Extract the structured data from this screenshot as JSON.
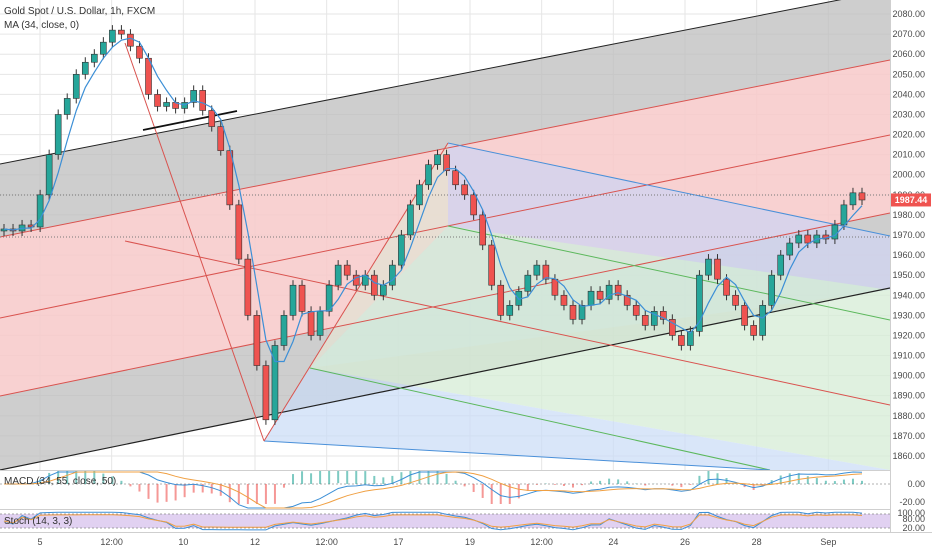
{
  "header": {
    "title": "Gold Spot / U.S. Dollar, 1h, FXCM",
    "ma_label": "MA (34, close, 0)"
  },
  "chart_data": {
    "type": "line",
    "y_ticks": [
      "2080.00",
      "2070.00",
      "2060.00",
      "2050.00",
      "2040.00",
      "2030.00",
      "2020.00",
      "2010.00",
      "2000.00",
      "1990.00",
      "1980.00",
      "1970.00",
      "1960.00",
      "1950.00",
      "1940.00",
      "1930.00",
      "1920.00",
      "1910.00",
      "1900.00",
      "1890.00",
      "1880.00",
      "1870.00",
      "1860.00"
    ],
    "x_ticks": [
      "5",
      "12:00",
      "10",
      "12",
      "12:00",
      "17",
      "19",
      "12:00",
      "24",
      "26",
      "28",
      "Sep"
    ],
    "ylim": [
      1853,
      2087
    ],
    "last_price": "1987.44",
    "price_series": [
      {
        "t": "5",
        "close": 1973
      },
      {
        "t": "5",
        "close": 1972
      },
      {
        "t": "5",
        "close": 1975
      },
      {
        "t": "5",
        "close": 1974
      },
      {
        "t": "5",
        "close": 1990
      },
      {
        "t": "5",
        "close": 2010
      },
      {
        "t": "5",
        "close": 2030
      },
      {
        "t": "5",
        "close": 2038
      },
      {
        "t": "5 12:00",
        "close": 2050
      },
      {
        "t": "5 12:00",
        "close": 2056
      },
      {
        "t": "5 12:00",
        "close": 2060
      },
      {
        "t": "5 12:00",
        "close": 2066
      },
      {
        "t": "5 12:00",
        "close": 2072
      },
      {
        "t": "5 12:00",
        "close": 2070
      },
      {
        "t": "5 12:00",
        "close": 2064
      },
      {
        "t": "5 12:00",
        "close": 2058
      },
      {
        "t": "10",
        "close": 2040
      },
      {
        "t": "10",
        "close": 2034
      },
      {
        "t": "10",
        "close": 2036
      },
      {
        "t": "10",
        "close": 2033
      },
      {
        "t": "10",
        "close": 2036
      },
      {
        "t": "10",
        "close": 2042
      },
      {
        "t": "10",
        "close": 2032
      },
      {
        "t": "10",
        "close": 2024
      },
      {
        "t": "10",
        "close": 2012
      },
      {
        "t": "10",
        "close": 1985
      },
      {
        "t": "10",
        "close": 1958
      },
      {
        "t": "10",
        "close": 1930
      },
      {
        "t": "12",
        "close": 1905
      },
      {
        "t": "12",
        "close": 1878
      },
      {
        "t": "12",
        "close": 1915
      },
      {
        "t": "12",
        "close": 1930
      },
      {
        "t": "12",
        "close": 1945
      },
      {
        "t": "12",
        "close": 1932
      },
      {
        "t": "12",
        "close": 1920
      },
      {
        "t": "12",
        "close": 1932
      },
      {
        "t": "12 12:00",
        "close": 1945
      },
      {
        "t": "12 12:00",
        "close": 1955
      },
      {
        "t": "12 12:00",
        "close": 1950
      },
      {
        "t": "12 12:00",
        "close": 1945
      },
      {
        "t": "12 12:00",
        "close": 1950
      },
      {
        "t": "12 12:00",
        "close": 1940
      },
      {
        "t": "12 12:00",
        "close": 1945
      },
      {
        "t": "12 12:00",
        "close": 1955
      },
      {
        "t": "17",
        "close": 1970
      },
      {
        "t": "17",
        "close": 1985
      },
      {
        "t": "17",
        "close": 1995
      },
      {
        "t": "17",
        "close": 2005
      },
      {
        "t": "17",
        "close": 2010
      },
      {
        "t": "17",
        "close": 2002
      },
      {
        "t": "17",
        "close": 1995
      },
      {
        "t": "17",
        "close": 1990
      },
      {
        "t": "19",
        "close": 1980
      },
      {
        "t": "19",
        "close": 1965
      },
      {
        "t": "19",
        "close": 1945
      },
      {
        "t": "19",
        "close": 1930
      },
      {
        "t": "19",
        "close": 1935
      },
      {
        "t": "19",
        "close": 1942
      },
      {
        "t": "19",
        "close": 1950
      },
      {
        "t": "19",
        "close": 1955
      },
      {
        "t": "19 12:00",
        "close": 1948
      },
      {
        "t": "19 12:00",
        "close": 1940
      },
      {
        "t": "19 12:00",
        "close": 1935
      },
      {
        "t": "19 12:00",
        "close": 1928
      },
      {
        "t": "19 12:00",
        "close": 1935
      },
      {
        "t": "19 12:00",
        "close": 1942
      },
      {
        "t": "19 12:00",
        "close": 1938
      },
      {
        "t": "19 12:00",
        "close": 1945
      },
      {
        "t": "24",
        "close": 1940
      },
      {
        "t": "24",
        "close": 1935
      },
      {
        "t": "24",
        "close": 1930
      },
      {
        "t": "24",
        "close": 1925
      },
      {
        "t": "24",
        "close": 1932
      },
      {
        "t": "24",
        "close": 1928
      },
      {
        "t": "24",
        "close": 1920
      },
      {
        "t": "24",
        "close": 1915
      },
      {
        "t": "26",
        "close": 1922
      },
      {
        "t": "26",
        "close": 1950
      },
      {
        "t": "26",
        "close": 1958
      },
      {
        "t": "26",
        "close": 1948
      },
      {
        "t": "26",
        "close": 1940
      },
      {
        "t": "26",
        "close": 1935
      },
      {
        "t": "26",
        "close": 1925
      },
      {
        "t": "26",
        "close": 1920
      },
      {
        "t": "28",
        "close": 1935
      },
      {
        "t": "28",
        "close": 1950
      },
      {
        "t": "28",
        "close": 1960
      },
      {
        "t": "28",
        "close": 1966
      },
      {
        "t": "28",
        "close": 1970
      },
      {
        "t": "28",
        "close": 1966
      },
      {
        "t": "28",
        "close": 1970
      },
      {
        "t": "28",
        "close": 1968
      },
      {
        "t": "Sep",
        "close": 1975
      },
      {
        "t": "Sep",
        "close": 1985
      },
      {
        "t": "Sep",
        "close": 1991
      },
      {
        "t": "Sep",
        "close": 1987.44
      }
    ],
    "indicators": {
      "macd_label": "MACD (34, 55, close, 50)",
      "macd_ticks": [
        "0.00",
        "-20.00"
      ],
      "stoch_label": "Stoch (14, 3, 3)",
      "stoch_ticks": [
        "100.00",
        "80.00",
        "20.00"
      ]
    },
    "colors": {
      "candle_up": "#26a69a",
      "candle_down": "#ef5350",
      "candle_edge": "#333333",
      "ma": "#3c8fd6",
      "macd": "#3c8fd6",
      "signal": "#f0a043",
      "stoch_k": "#3c8fd6",
      "stoch_d": "#f0a043",
      "stoch_band": "#d9c5ee",
      "last_price_label_bg": "#ef5350",
      "grid": "#e6e6e6",
      "fork_gray": "#bdbdbd",
      "fork_pink": "#f7c9c9",
      "fork_blue": "#c9dbf7",
      "fork_green": "#d5ecd5",
      "fork_purple": "#d6d1ec"
    },
    "grid": true
  }
}
